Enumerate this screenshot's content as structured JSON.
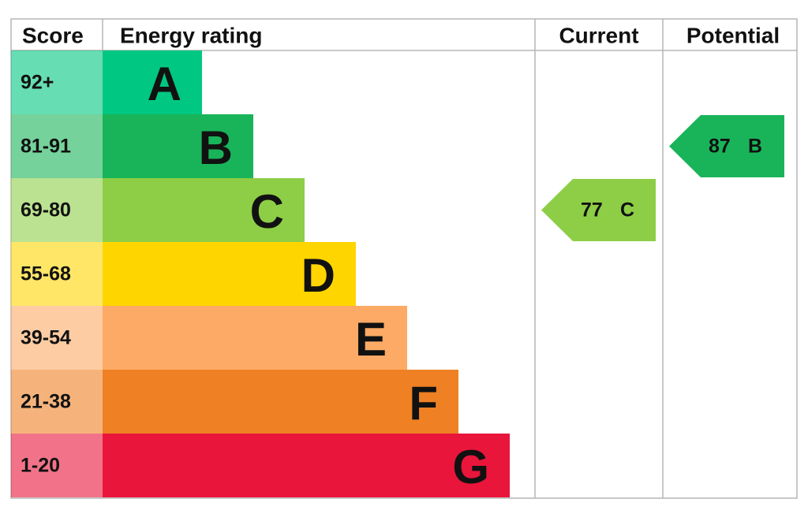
{
  "chart_data": {
    "type": "epc",
    "headers": [
      "Score",
      "Energy rating",
      "Current",
      "Potential"
    ],
    "bands": [
      {
        "score": "92+",
        "letter": "A",
        "color": "#00c781"
      },
      {
        "score": "81-91",
        "letter": "B",
        "color": "#19b459"
      },
      {
        "score": "69-80",
        "letter": "C",
        "color": "#8dce46"
      },
      {
        "score": "55-68",
        "letter": "D",
        "color": "#ffd500"
      },
      {
        "score": "39-54",
        "letter": "E",
        "color": "#fcaa65"
      },
      {
        "score": "21-38",
        "letter": "F",
        "color": "#ef8023"
      },
      {
        "score": "1-20",
        "letter": "G",
        "color": "#e9153b"
      }
    ],
    "current": {
      "value": 77,
      "band": "C"
    },
    "potential": {
      "value": 87,
      "band": "B"
    }
  }
}
